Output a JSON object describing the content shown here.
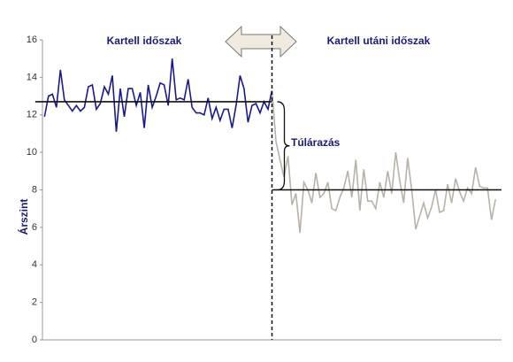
{
  "chart_data": {
    "type": "line",
    "y_label": "Árszint",
    "annotations": [
      "Kartell időszak",
      "Kartell utáni időszak",
      "Túlárazás"
    ],
    "x": [
      0,
      1,
      2,
      3,
      4,
      5,
      6,
      7,
      8,
      9,
      10,
      11,
      12,
      13,
      14,
      15,
      16,
      17,
      18,
      19,
      20,
      21,
      22,
      23,
      24,
      25,
      26,
      27,
      28,
      29,
      30,
      31,
      32,
      33,
      34,
      35,
      36,
      37,
      38,
      39,
      40,
      41,
      42,
      43,
      44,
      45,
      46,
      47,
      48,
      49,
      50,
      51,
      52,
      53,
      54,
      55,
      56,
      57,
      58,
      59,
      60,
      61,
      62,
      63,
      64,
      65,
      66,
      67,
      68,
      69,
      70,
      71,
      72,
      73,
      74,
      75,
      76,
      77,
      78,
      79,
      80,
      81,
      82,
      83,
      84,
      85,
      86,
      87,
      88,
      89,
      90,
      91,
      92,
      93,
      94,
      95,
      96,
      97,
      98,
      99,
      100,
      101,
      102,
      103,
      104,
      105,
      106,
      107,
      108,
      109,
      110,
      111,
      112,
      113
    ],
    "series": [
      {
        "color": "#1a1a8c",
        "values": [
          11.9,
          13.0,
          13.1,
          12.4,
          14.4,
          12.8,
          12.5,
          12.2,
          12.5,
          12.2,
          12.4,
          13.5,
          13.6,
          12.3,
          12.6,
          13.5,
          13.1,
          14.1,
          11.1,
          13.4,
          11.9,
          13.4,
          13.4,
          12.5,
          13.2,
          11.3,
          13.6,
          12.4,
          13.0,
          13.7,
          13.6,
          12.5,
          15.0,
          12.8,
          12.9,
          12.8,
          13.9,
          12.4,
          12.1,
          12.1,
          12.0,
          12.9,
          11.8,
          12.4,
          11.7,
          12.3,
          12.3,
          11.3,
          12.5,
          14.1,
          13.4,
          11.6,
          12.5,
          12.6,
          12.1,
          12.7,
          12.3,
          13.3,
          null,
          null,
          null,
          null,
          null,
          null,
          null,
          null,
          null,
          null,
          null,
          null,
          null,
          null,
          null,
          null,
          null,
          null,
          null,
          null,
          null,
          null,
          null,
          null,
          null,
          null,
          null,
          null,
          null,
          null,
          null,
          null,
          null,
          null,
          null,
          null,
          null,
          null,
          null,
          null,
          null,
          null,
          null,
          null,
          null,
          null,
          null,
          null,
          null,
          null,
          null,
          null,
          null,
          null,
          null,
          null
        ]
      },
      {
        "color": "#b8b2a8",
        "values": [
          null,
          null,
          null,
          null,
          null,
          null,
          null,
          null,
          null,
          null,
          null,
          null,
          null,
          null,
          null,
          null,
          null,
          null,
          null,
          null,
          null,
          null,
          null,
          null,
          null,
          null,
          null,
          null,
          null,
          null,
          null,
          null,
          null,
          null,
          null,
          null,
          null,
          null,
          null,
          null,
          null,
          null,
          null,
          null,
          null,
          null,
          null,
          null,
          null,
          null,
          null,
          null,
          null,
          null,
          null,
          null,
          null,
          13.3,
          10.6,
          9.6,
          8.7,
          9.8,
          7.2,
          7.8,
          5.7,
          8.4,
          8.0,
          7.3,
          8.9,
          7.6,
          7.8,
          8.4,
          7.0,
          6.9,
          7.6,
          8.1,
          9.0,
          7.6,
          9.6,
          6.9,
          9.1,
          7.4,
          7.4,
          7.0,
          8.4,
          7.6,
          9.0,
          7.8,
          10.0,
          8.5,
          7.3,
          9.7,
          8.0,
          5.9,
          6.6,
          7.3,
          6.5,
          7.1,
          8.0,
          6.8,
          6.9,
          8.3,
          7.3,
          8.6,
          7.9,
          7.4,
          8.1,
          7.8,
          9.2,
          8.2,
          8.1,
          8.1,
          6.4,
          7.5
        ]
      }
    ],
    "reference_lines": [
      {
        "value": 12.7,
        "x_range": [
          -2.3,
          57
        ]
      },
      {
        "value": 8.0,
        "x_range": [
          57,
          114.5
        ]
      }
    ],
    "divider_x": 57,
    "xlim": [
      -0.5,
      114.5
    ],
    "ylim": [
      0,
      16
    ],
    "yticks": [
      0,
      2,
      4,
      6,
      8,
      10,
      12,
      14,
      16
    ]
  }
}
